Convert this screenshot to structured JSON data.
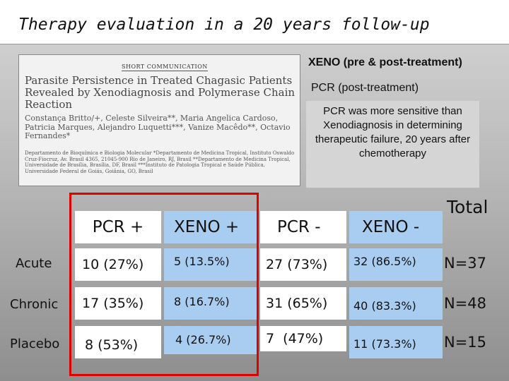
{
  "title": "Therapy evaluation in a 20 years follow-up",
  "paper": {
    "section": "SHORT COMMUNICATION",
    "title": "Parasite Persistence in Treated Chagasic Patients Revealed by Xenodiagnosis and Polymerase Chain Reaction",
    "authors": "Constança Britto/+, Celeste Silveira**, Maria Angelica Cardoso, Patricia Marques, Alejandro Luquetti***, Vanize Macêdo**, Octavio Fernandes*",
    "affiliation": "Departamento de Bioquímica e Biologia Molecular *Departamento de Medicina Tropical, Instituto Oswaldo Cruz-Fiocruz, Av. Brasil 4365, 21045-900 Rio de Janeiro, RJ, Brasil **Departamento de Medicina Tropical, Universidade de Brasília, Brasília, DF, Brasil ***Instituto de Patologia Tropical e Saúde Pública, Universidade Federal de Goiás, Goiânia, GO, Brasil"
  },
  "legend": {
    "xeno": "XENO (pre & post-treatment)",
    "pcr": "PCR (post-treatment)"
  },
  "note": "PCR was more sensitive than Xenodiagnosis in determining therapeutic failure, 20 years after chemotherapy",
  "table": {
    "headers": [
      "PCR +",
      "XENO +",
      "PCR -",
      "XENO -"
    ],
    "total_label": "Total",
    "rows": [
      {
        "label": "Acute",
        "cells": [
          "10 (27%)",
          "5 (13.5%)",
          "27 (73%)",
          "32 (86.5%)"
        ],
        "total": "N=37"
      },
      {
        "label": "Chronic",
        "cells": [
          "17 (35%)",
          "8 (16.7%)",
          "31 (65%)",
          "40 (83.3%)"
        ],
        "total": "N=48"
      },
      {
        "label": "Placebo",
        "cells": [
          "8 (53%)",
          "4 (26.7%)",
          "7  (47%)",
          "11 (73.3%)"
        ],
        "total": "N=15"
      }
    ]
  },
  "colors": {
    "pcr_cell": "#ffffff",
    "xeno_cell": "#a8cdf0",
    "highlight_border": "#e00000"
  }
}
